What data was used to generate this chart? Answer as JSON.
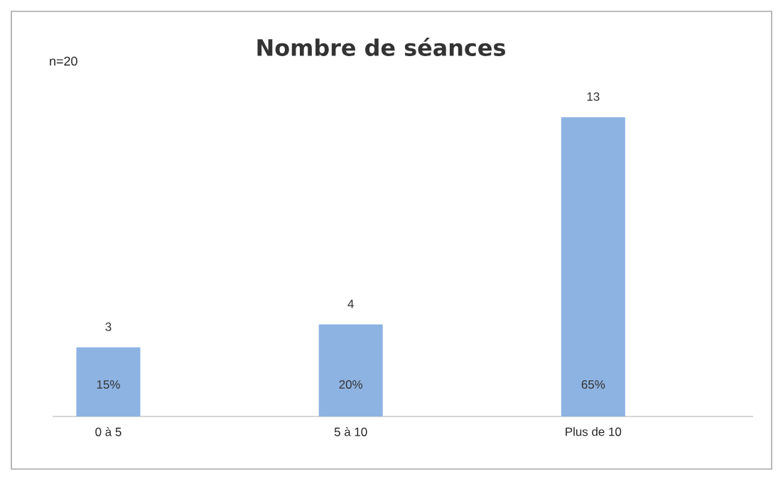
{
  "chart_data": {
    "type": "bar",
    "title": "Nombre de séances",
    "categories": [
      "0 à 5",
      "5 à 10",
      "Plus de 10"
    ],
    "values": [
      3,
      4,
      13
    ],
    "color": "#8db3e2",
    "data_labels": true,
    "annotations": [
      "n=20",
      "15%",
      "20%",
      "65%"
    ]
  }
}
